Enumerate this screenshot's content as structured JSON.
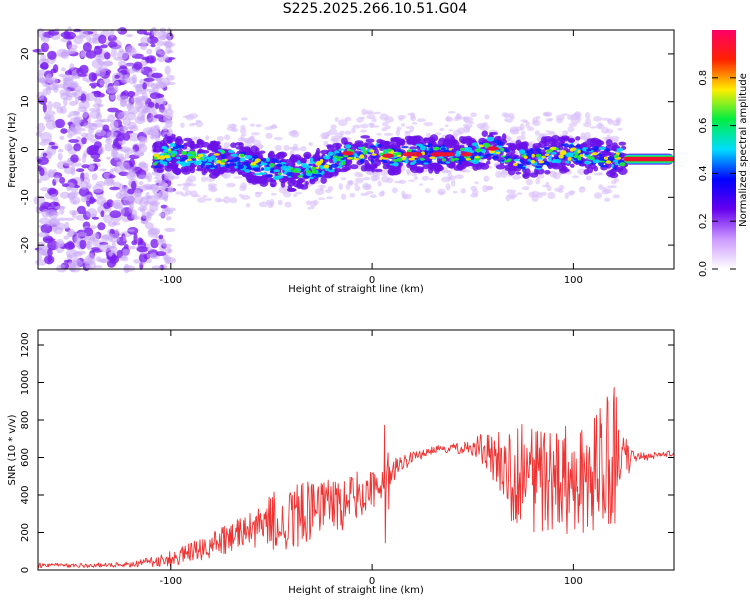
{
  "title": "S225.2025.266.10.51.G04",
  "colors": {
    "snr_line": "#ee3333",
    "axis": "#000000"
  },
  "chart_data": [
    {
      "type": "heatmap",
      "title": "",
      "xlabel": "Height of straight line (km)",
      "ylabel": "Frequency (Hz)",
      "xlim": [
        -166,
        150
      ],
      "ylim": [
        -25,
        25
      ],
      "xticks": [
        -100,
        0,
        100
      ],
      "yticks": [
        -20,
        -10,
        0,
        10,
        20
      ],
      "colorbar": {
        "label": "Normalized spectral amplitude",
        "range": [
          0,
          1
        ],
        "ticks": [
          0.0,
          0.2,
          0.4,
          0.6,
          0.8
        ],
        "colormap": [
          "#ffffff",
          "#cc99ff",
          "#6600ee",
          "#0000ff",
          "#00ddff",
          "#00ee44",
          "#ffee00",
          "#ff2200",
          "#ff0066"
        ]
      },
      "ridge": {
        "x": [
          -108,
          -100,
          -90,
          -80,
          -70,
          -60,
          -50,
          -40,
          -30,
          -20,
          -10,
          0,
          10,
          20,
          30,
          40,
          50,
          60,
          70,
          80,
          90,
          100,
          110,
          120,
          125,
          150
        ],
        "freq": [
          -2,
          -1,
          -1.5,
          -2,
          -1.5,
          -3,
          -4,
          -5,
          -4,
          -2.5,
          -1,
          -0.8,
          -1.3,
          -1,
          -1,
          -1,
          -1,
          0.5,
          -2,
          -2,
          -1,
          -1,
          -1.5,
          -2,
          -2,
          -2
        ]
      },
      "noise_region_x": [
        -166,
        -100
      ]
    },
    {
      "type": "line",
      "title": "",
      "xlabel": "Height of straight line (km)",
      "ylabel": "SNR (10 * v/v)",
      "xlim": [
        -166,
        150
      ],
      "ylim": [
        0,
        1280
      ],
      "xticks": [
        -100,
        0,
        100
      ],
      "yticks": [
        0,
        200,
        400,
        600,
        800,
        1000,
        1200
      ],
      "series": [
        {
          "x": [
            -166,
            -140,
            -120,
            -100,
            -90,
            -80,
            -70,
            -60,
            -50,
            -40,
            -30,
            -20,
            -10,
            0,
            5,
            10,
            20,
            30,
            40,
            50,
            55,
            60,
            65,
            70,
            80,
            90,
            100,
            110,
            115,
            120,
            125,
            130,
            140,
            150
          ],
          "y": [
            25,
            25,
            30,
            60,
            90,
            130,
            170,
            230,
            260,
            290,
            310,
            340,
            380,
            420,
            470,
            530,
            600,
            640,
            650,
            650,
            640,
            600,
            560,
            520,
            500,
            480,
            480,
            500,
            560,
            600,
            620,
            600,
            610,
            630
          ],
          "amp": [
            12,
            12,
            15,
            40,
            55,
            70,
            85,
            110,
            150,
            200,
            170,
            140,
            160,
            100,
            90,
            60,
            30,
            20,
            25,
            40,
            100,
            150,
            220,
            280,
            320,
            300,
            280,
            300,
            360,
            400,
            200,
            25,
            20,
            20
          ]
        }
      ]
    }
  ]
}
